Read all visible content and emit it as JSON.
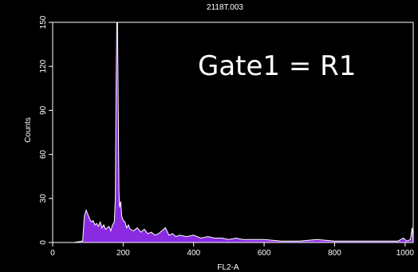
{
  "chart_data": {
    "type": "histogram",
    "title": "2118T.003",
    "xlabel": "FL2-A",
    "ylabel": "Counts",
    "xlim": [
      0,
      1023
    ],
    "ylim": [
      0,
      150
    ],
    "xticks": [
      0,
      200,
      400,
      600,
      800,
      1000
    ],
    "yticks": [
      0,
      30,
      60,
      90,
      120,
      150
    ],
    "annotation": "Gate1 = R1",
    "grid": false,
    "colors": {
      "fill": "#8a2be2",
      "outline": "#ffffff",
      "background": "#000000",
      "axes": "#ffffff"
    },
    "series": [
      {
        "x": [
          0,
          60,
          85,
          90,
          95,
          100,
          105,
          110,
          115,
          120,
          125,
          130,
          135,
          140,
          145,
          150,
          155,
          160,
          165,
          170,
          175,
          178,
          180,
          182,
          184,
          186,
          188,
          190,
          193,
          196,
          200,
          205,
          210,
          215,
          220,
          230,
          240,
          250,
          260,
          270,
          280,
          290,
          300,
          310,
          320,
          330,
          340,
          350,
          360,
          380,
          400,
          420,
          440,
          460,
          480,
          500,
          520,
          540,
          560,
          580,
          600,
          650,
          700,
          750,
          800,
          850,
          900,
          950,
          980,
          995,
          1005,
          1015,
          1020,
          1023
        ],
        "y": [
          0,
          0,
          1,
          18,
          22,
          19,
          16,
          14,
          15,
          12,
          13,
          11,
          14,
          10,
          12,
          9,
          10,
          11,
          8,
          12,
          14,
          30,
          105,
          150,
          150,
          95,
          35,
          24,
          28,
          18,
          15,
          14,
          10,
          12,
          9,
          8,
          10,
          7,
          9,
          6,
          7,
          5,
          6,
          8,
          10,
          5,
          6,
          4,
          5,
          4,
          5,
          3,
          4,
          3,
          3,
          2,
          3,
          2,
          2,
          2,
          2,
          1,
          1,
          2,
          1,
          1,
          1,
          1,
          1,
          3,
          1,
          2,
          10,
          0
        ]
      }
    ]
  }
}
